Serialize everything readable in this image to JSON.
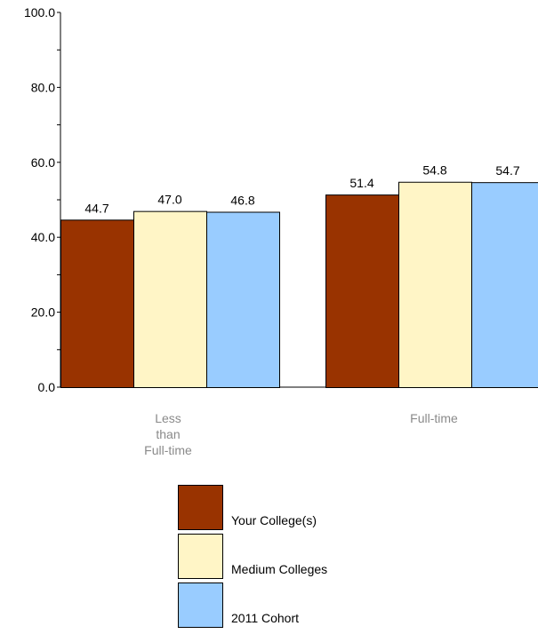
{
  "chart_data": {
    "type": "bar",
    "title": "",
    "xlabel": "",
    "ylabel": "",
    "ylim": [
      0,
      100
    ],
    "y_ticks": [
      "0.0",
      "20.0",
      "40.0",
      "60.0",
      "80.0",
      "100.0"
    ],
    "categories": [
      {
        "lines": [
          "Less",
          "than",
          "Full-time"
        ]
      },
      {
        "lines": [
          "Full-time"
        ]
      }
    ],
    "series": [
      {
        "name": "Your College(s)",
        "color": "#993300",
        "values": [
          44.7,
          51.4
        ],
        "labels": [
          "44.7",
          "51.4"
        ]
      },
      {
        "name": "Medium Colleges",
        "color": "#fff5c6",
        "values": [
          47.0,
          54.8
        ],
        "labels": [
          "47.0",
          "54.8"
        ]
      },
      {
        "name": "2011 Cohort",
        "color": "#99ccff",
        "values": [
          46.8,
          54.7
        ],
        "labels": [
          "46.8",
          "54.7"
        ]
      }
    ],
    "grid": false,
    "legend_position": "bottom"
  }
}
